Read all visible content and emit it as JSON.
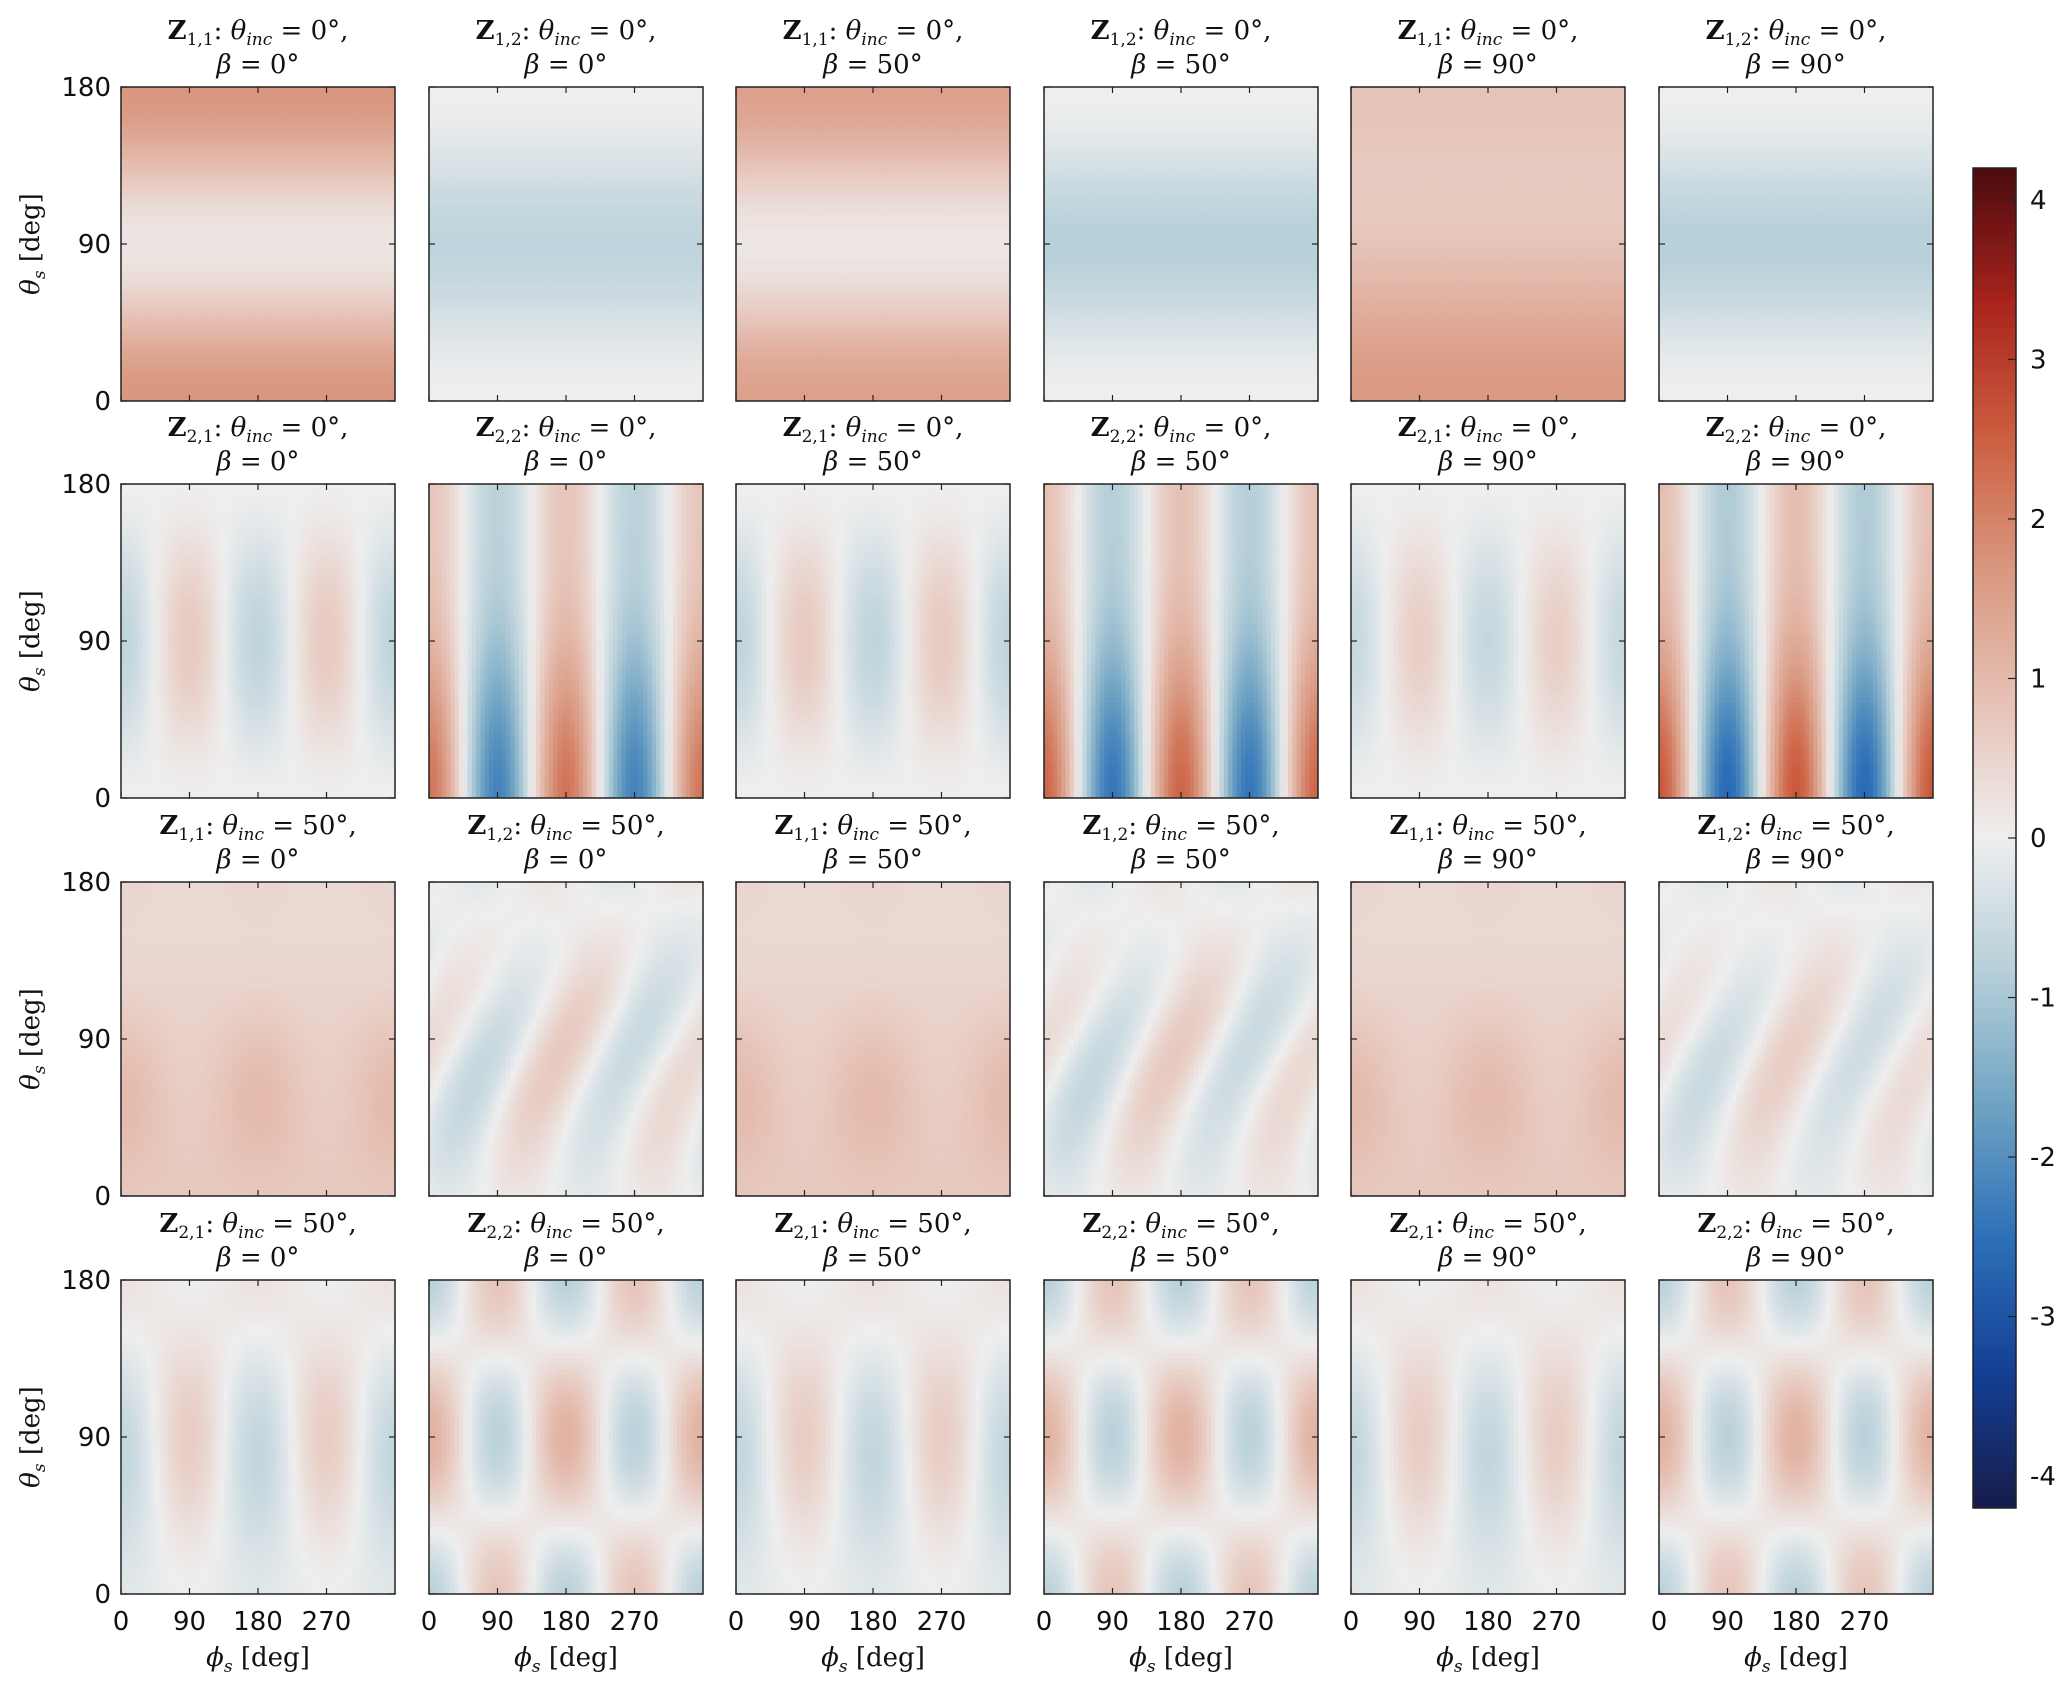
{
  "chart_data": {
    "type": "heatmap",
    "colorbar": {
      "ticks": [
        "4",
        "3",
        "2",
        "1",
        "0",
        "-1",
        "-2",
        "-3",
        "-4"
      ],
      "tick_values": [
        4,
        3,
        2,
        1,
        0,
        -1,
        -2,
        -3,
        -4
      ],
      "range": [
        -4.2,
        4.2
      ],
      "colors": [
        "#161c4a",
        "#143f94",
        "#2c6fb8",
        "#6fa3c3",
        "#b6cfd9",
        "#eeeeee",
        "#e6c2b6",
        "#d99880",
        "#cc5e40",
        "#a8231c",
        "#4a0b0f"
      ]
    },
    "axes": {
      "x_ticks": [
        "0",
        "90",
        "180",
        "270"
      ],
      "x_tick_values": [
        0,
        90,
        180,
        270
      ],
      "x_range": [
        0,
        360
      ],
      "y_ticks": [
        "180",
        "90",
        "0"
      ],
      "y_tick_values": [
        180,
        90,
        0
      ],
      "y_range": [
        0,
        180
      ],
      "xlabel_var": "ϕ",
      "xlabel_sub": "s",
      "xlabel_unit": "[deg]",
      "ylabel_var": "θ",
      "ylabel_sub": "s",
      "ylabel_unit": "[deg]"
    },
    "panels": [
      {
        "row": 0,
        "col": 0,
        "z": "Z",
        "idx": "1,1",
        "theta_inc": "0",
        "beta": "0",
        "pattern": "z11_0",
        "amp": 1.7
      },
      {
        "row": 0,
        "col": 1,
        "z": "Z",
        "idx": "1,2",
        "theta_inc": "0",
        "beta": "0",
        "pattern": "z12_0",
        "amp": -0.7
      },
      {
        "row": 0,
        "col": 2,
        "z": "Z",
        "idx": "1,1",
        "theta_inc": "0",
        "beta": "50",
        "pattern": "z11_0",
        "amp": 1.5
      },
      {
        "row": 0,
        "col": 3,
        "z": "Z",
        "idx": "1,2",
        "theta_inc": "0",
        "beta": "50",
        "pattern": "z12_0",
        "amp": -0.8
      },
      {
        "row": 0,
        "col": 4,
        "z": "Z",
        "idx": "1,1",
        "theta_inc": "0",
        "beta": "90",
        "pattern": "z11_90",
        "amp": 1.5
      },
      {
        "row": 0,
        "col": 5,
        "z": "Z",
        "idx": "1,2",
        "theta_inc": "0",
        "beta": "90",
        "pattern": "z12_0",
        "amp": -0.8
      },
      {
        "row": 1,
        "col": 0,
        "z": "Z",
        "idx": "2,1",
        "theta_inc": "0",
        "beta": "0",
        "pattern": "z21_0",
        "amp": 0.7
      },
      {
        "row": 1,
        "col": 1,
        "z": "Z",
        "idx": "2,2",
        "theta_inc": "0",
        "beta": "0",
        "pattern": "z22_0",
        "amp": 2.2
      },
      {
        "row": 1,
        "col": 2,
        "z": "Z",
        "idx": "2,1",
        "theta_inc": "0",
        "beta": "50",
        "pattern": "z21_0",
        "amp": 0.7
      },
      {
        "row": 1,
        "col": 3,
        "z": "Z",
        "idx": "2,2",
        "theta_inc": "0",
        "beta": "50",
        "pattern": "z22_0",
        "amp": 2.4
      },
      {
        "row": 1,
        "col": 4,
        "z": "Z",
        "idx": "2,1",
        "theta_inc": "0",
        "beta": "90",
        "pattern": "z21_0",
        "amp": 0.6
      },
      {
        "row": 1,
        "col": 5,
        "z": "Z",
        "idx": "2,2",
        "theta_inc": "0",
        "beta": "90",
        "pattern": "z22_0",
        "amp": 2.6
      },
      {
        "row": 2,
        "col": 0,
        "z": "Z",
        "idx": "1,1",
        "theta_inc": "50",
        "beta": "0",
        "pattern": "z11_50",
        "amp": 1.0
      },
      {
        "row": 2,
        "col": 1,
        "z": "Z",
        "idx": "1,2",
        "theta_inc": "50",
        "beta": "0",
        "pattern": "z12_50",
        "amp": 0.8
      },
      {
        "row": 2,
        "col": 2,
        "z": "Z",
        "idx": "1,1",
        "theta_inc": "50",
        "beta": "50",
        "pattern": "z11_50",
        "amp": 1.0
      },
      {
        "row": 2,
        "col": 3,
        "z": "Z",
        "idx": "1,2",
        "theta_inc": "50",
        "beta": "50",
        "pattern": "z12_50",
        "amp": 0.8
      },
      {
        "row": 2,
        "col": 4,
        "z": "Z",
        "idx": "1,1",
        "theta_inc": "50",
        "beta": "90",
        "pattern": "z11_50",
        "amp": 1.0
      },
      {
        "row": 2,
        "col": 5,
        "z": "Z",
        "idx": "1,2",
        "theta_inc": "50",
        "beta": "90",
        "pattern": "z12_50",
        "amp": 0.7
      },
      {
        "row": 3,
        "col": 0,
        "z": "Z",
        "idx": "2,1",
        "theta_inc": "50",
        "beta": "0",
        "pattern": "z21_50",
        "amp": 0.7
      },
      {
        "row": 3,
        "col": 1,
        "z": "Z",
        "idx": "2,2",
        "theta_inc": "50",
        "beta": "0",
        "pattern": "z22_50",
        "amp": 1.1
      },
      {
        "row": 3,
        "col": 2,
        "z": "Z",
        "idx": "2,1",
        "theta_inc": "50",
        "beta": "50",
        "pattern": "z21_50",
        "amp": 0.7
      },
      {
        "row": 3,
        "col": 3,
        "z": "Z",
        "idx": "2,2",
        "theta_inc": "50",
        "beta": "50",
        "pattern": "z22_50",
        "amp": 1.1
      },
      {
        "row": 3,
        "col": 4,
        "z": "Z",
        "idx": "2,1",
        "theta_inc": "50",
        "beta": "90",
        "pattern": "z21_50",
        "amp": 0.7
      },
      {
        "row": 3,
        "col": 5,
        "z": "Z",
        "idx": "2,2",
        "theta_inc": "50",
        "beta": "90",
        "pattern": "z22_50",
        "amp": 1.1
      }
    ]
  }
}
